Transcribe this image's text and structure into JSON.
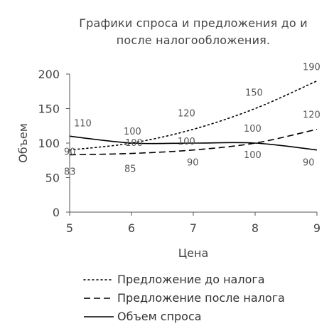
{
  "chart_data": {
    "type": "line",
    "title_lines": [
      "Графики спроса и предложения до и",
      "после налогообложения."
    ],
    "xlabel": "Цена",
    "ylabel": "Объем",
    "x": [
      5,
      6,
      7,
      8,
      9
    ],
    "xlim": [
      5,
      9
    ],
    "ylim": [
      0,
      200
    ],
    "x_ticks": [
      "5",
      "6",
      "7",
      "8",
      "9"
    ],
    "y_ticks": [
      "0",
      "50",
      "100",
      "150",
      "200"
    ],
    "grid": false,
    "legend_position": "bottom",
    "series": [
      {
        "name": "Предложение до налога",
        "values": [
          90,
          100,
          120,
          150,
          190
        ],
        "labels": [
          "90",
          "100",
          "120",
          "150",
          "190"
        ],
        "style": "dotted",
        "color": "#000000"
      },
      {
        "name": "Предложение после налога",
        "values": [
          83,
          85,
          90,
          100,
          120
        ],
        "labels": [
          "83",
          "85",
          "90",
          "100",
          "120"
        ],
        "style": "dashed",
        "color": "#000000"
      },
      {
        "name": "Объем спроса",
        "values": [
          110,
          100,
          100,
          100,
          90
        ],
        "labels": [
          "110",
          "100",
          "100",
          "100",
          "90"
        ],
        "style": "solid",
        "color": "#000000"
      }
    ]
  }
}
